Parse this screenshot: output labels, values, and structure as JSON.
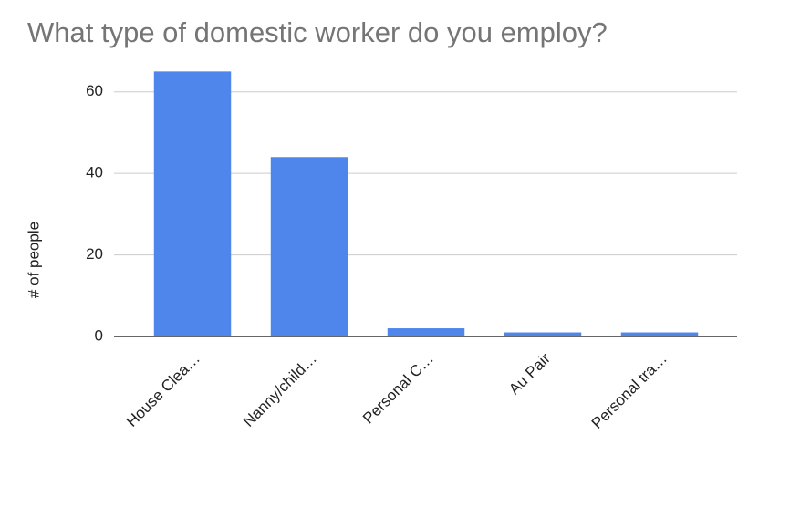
{
  "chart_data": {
    "type": "bar",
    "title": "What type of domestic worker do you employ?",
    "y_label": "# of people",
    "categories": [
      "House Clea…",
      "Nanny/child…",
      "Personal C…",
      "Au Pair",
      "Personal tra…"
    ],
    "values": [
      65,
      44,
      2,
      1,
      1
    ],
    "color": "#4e86eb",
    "ylim": [
      0,
      70
    ],
    "yticks": [
      0,
      20,
      40,
      60
    ],
    "grid": true
  }
}
